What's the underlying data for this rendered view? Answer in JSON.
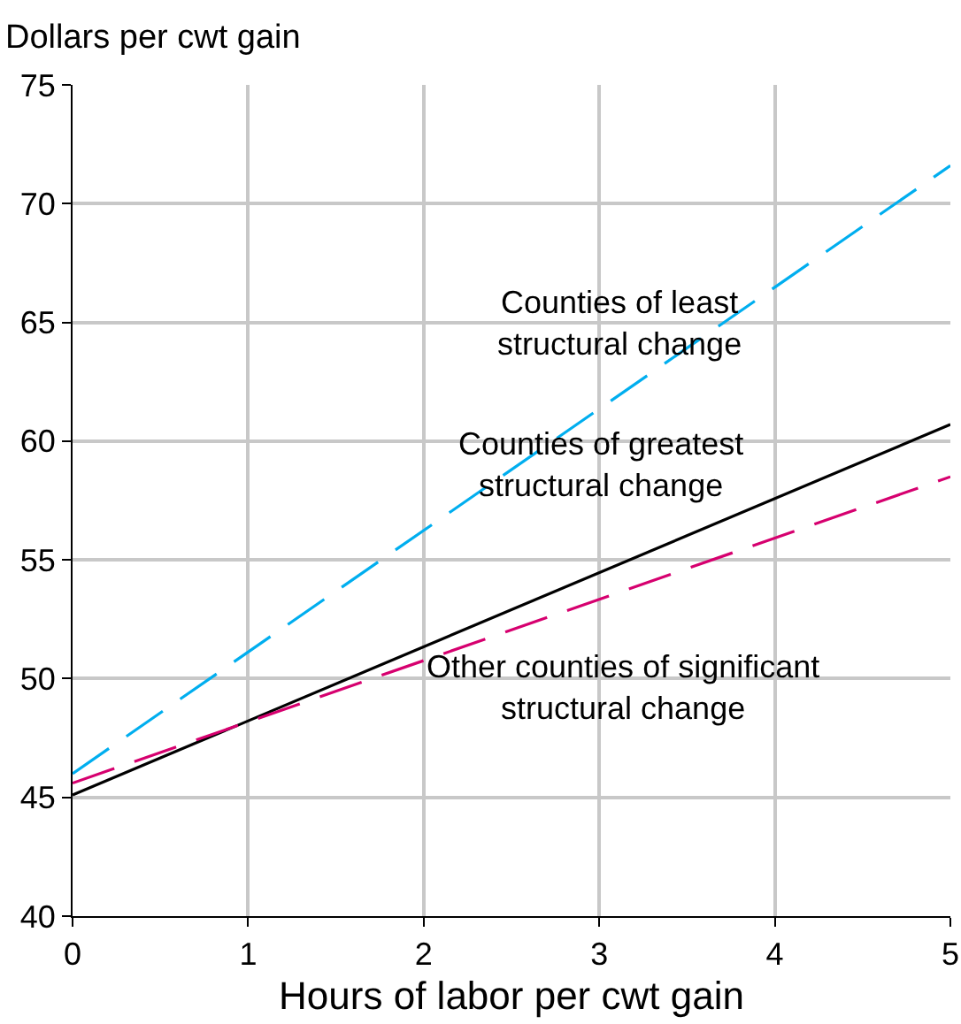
{
  "chart_data": {
    "type": "line",
    "xlabel": "Hours of labor per cwt gain",
    "ylabel": "Dollars per cwt gain",
    "x": [
      0,
      5
    ],
    "series": [
      {
        "name": "Counties of least structural change",
        "color": "#00aeef",
        "line_style": "dashed",
        "values": [
          46.0,
          71.6
        ]
      },
      {
        "name": "Counties of greatest structural change",
        "color": "#000000",
        "line_style": "solid",
        "values": [
          45.1,
          60.7
        ]
      },
      {
        "name": "Other counties of significant structural change",
        "color": "#d6006f",
        "line_style": "dashed",
        "values": [
          45.6,
          58.5
        ]
      }
    ],
    "xlim": [
      0,
      5
    ],
    "xticks": [
      0,
      1,
      2,
      3,
      4,
      5
    ],
    "ylim": [
      40,
      75
    ],
    "yticks": [
      40,
      45,
      50,
      55,
      60,
      65,
      70,
      75
    ],
    "grid": true,
    "legend": false,
    "marker": "none"
  }
}
